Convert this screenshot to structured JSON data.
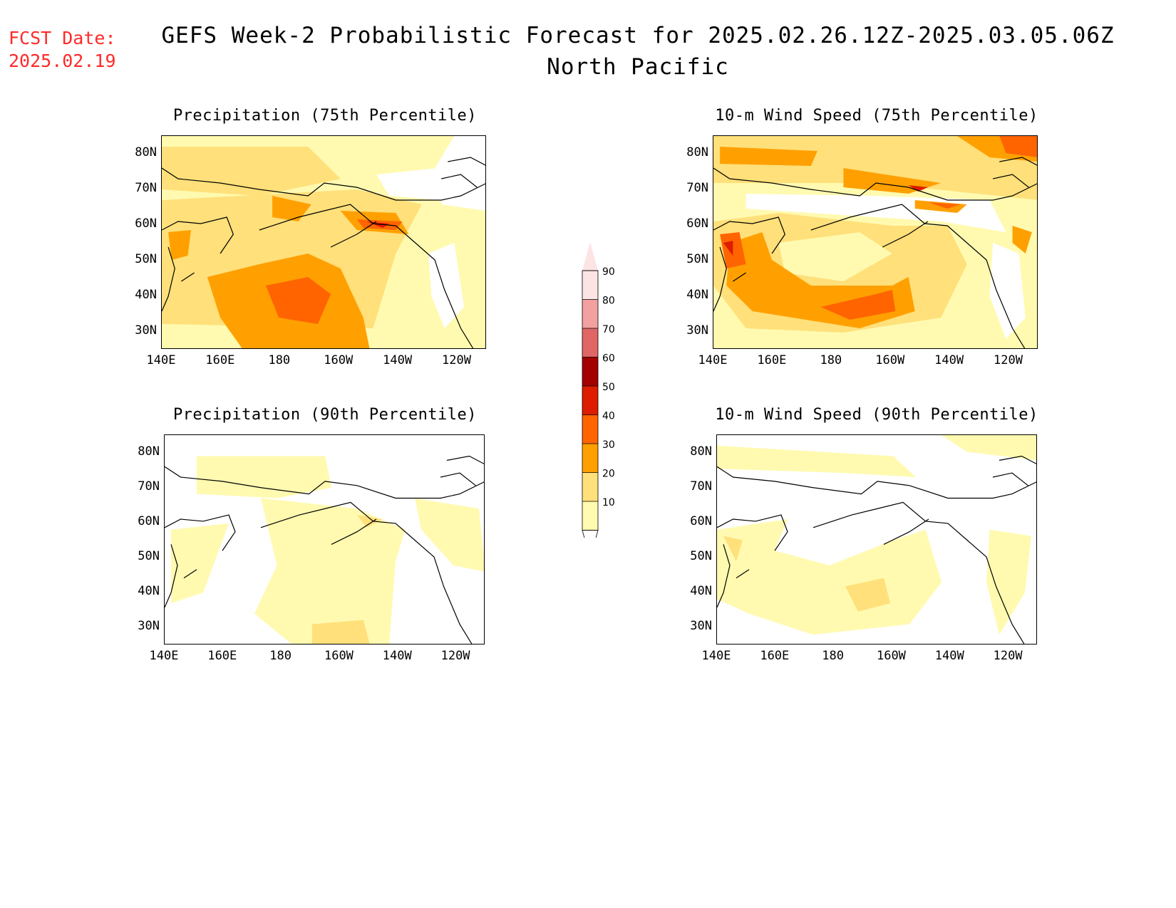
{
  "fcst_date": {
    "label": "FCST Date:",
    "value": "2025.02.19"
  },
  "title": {
    "line1": "GEFS Week-2 Probabilistic Forecast for 2025.02.26.12Z-2025.03.05.06Z",
    "line2": "North Pacific"
  },
  "panels": [
    {
      "title": "Precipitation (75th Percentile)"
    },
    {
      "title": "10-m Wind Speed (75th Percentile)"
    },
    {
      "title": "Precipitation (90th Percentile)"
    },
    {
      "title": "10-m Wind Speed (90th Percentile)"
    }
  ],
  "axes": {
    "lat_labels": [
      "80N",
      "70N",
      "60N",
      "50N",
      "40N",
      "30N"
    ],
    "lon_labels": [
      "140E",
      "160E",
      "180",
      "160W",
      "140W",
      "120W"
    ]
  },
  "colorbar": {
    "levels": [
      "90",
      "80",
      "70",
      "60",
      "50",
      "40",
      "30",
      "20",
      "10"
    ],
    "colors": [
      "#fde4e4",
      "#f2a0a0",
      "#e06666",
      "#a30000",
      "#dd1c00",
      "#ff6400",
      "#ffa000",
      "#ffe07a",
      "#fffab0"
    ]
  },
  "chart_data": {
    "type": "heatmap",
    "lat_range": [
      25,
      85
    ],
    "lon_range": [
      140,
      250
    ],
    "palette": {
      "10-20": "#fffab0",
      "20-30": "#ffe07a",
      "30-40": "#ffa000",
      "40-50": "#ff6400",
      "50-60": "#dd1c00",
      "60-70": "#a30000"
    }
  }
}
